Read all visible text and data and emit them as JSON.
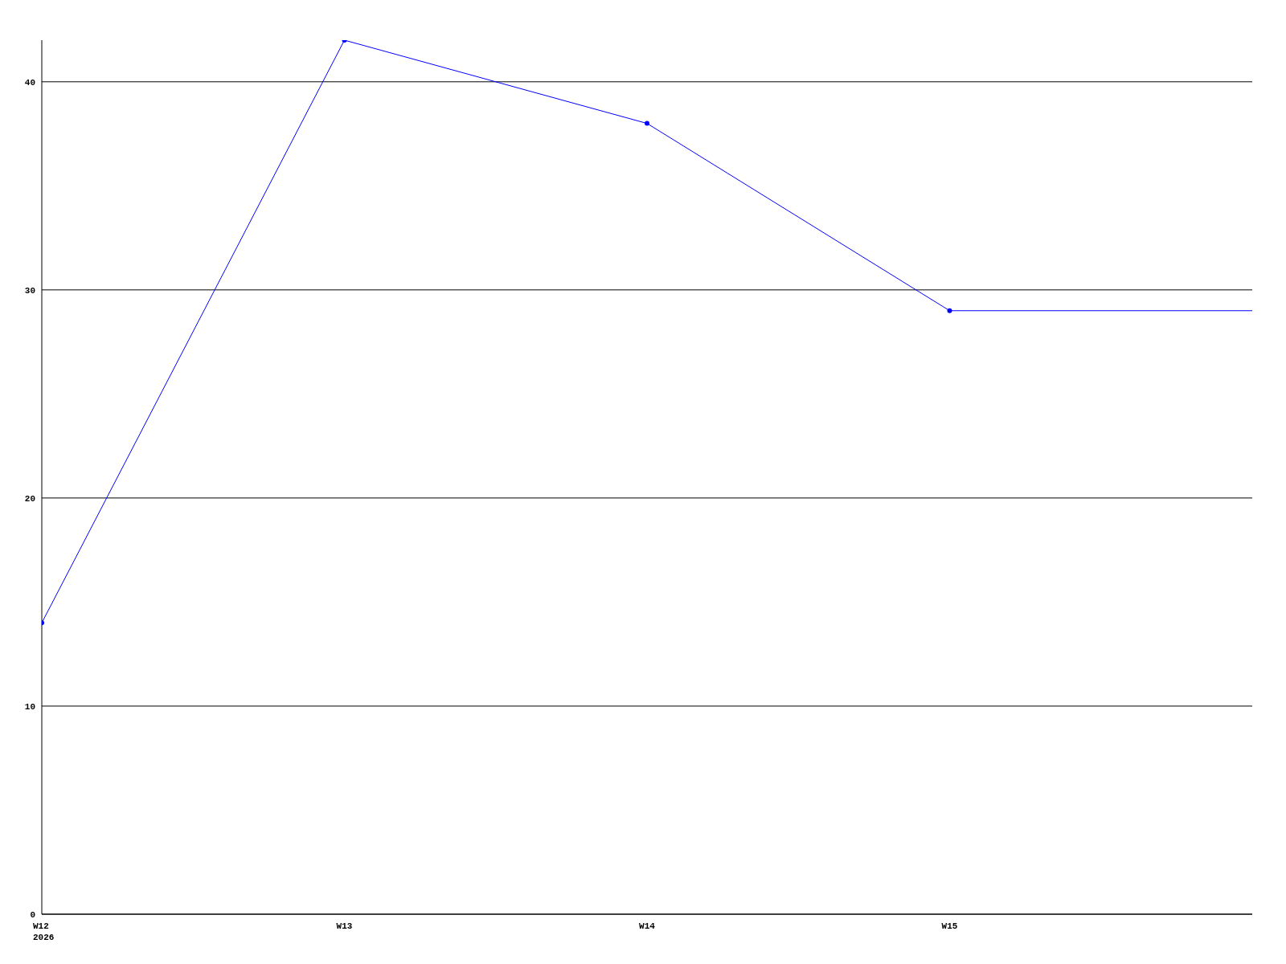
{
  "chart_data": {
    "type": "line",
    "categories": [
      "W12\n2026",
      "W13",
      "W14",
      "W15",
      null
    ],
    "series": [
      {
        "color": "#0000ff",
        "values": [
          14,
          42,
          38,
          29,
          29
        ]
      }
    ],
    "ylim": [
      0,
      42
    ],
    "yticks": [
      0,
      10,
      20,
      30,
      40
    ],
    "grid": "y",
    "marker": "circle",
    "legend": false
  }
}
